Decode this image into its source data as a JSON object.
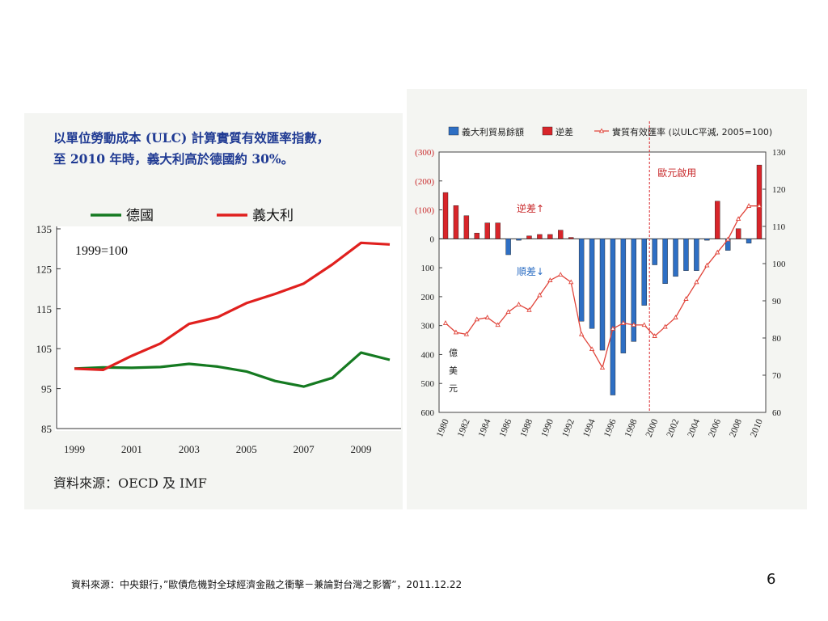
{
  "left_chart": {
    "title_line1": "以單位勞動成本 (ULC) 計算實質有效匯率指數，",
    "title_line2": "至 2010 年時，義大利高於德國約 30%。",
    "base_note": "1999=100",
    "source": "資料來源：OECD 及 IMF",
    "colors": {
      "germany": "#157a21",
      "italy": "#e0201e"
    },
    "chart_data": {
      "type": "line",
      "title": "以單位勞動成本 (ULC) 計算實質有效匯率指數",
      "x": [
        1999,
        2000,
        2001,
        2002,
        2003,
        2004,
        2005,
        2006,
        2007,
        2008,
        2009,
        2010
      ],
      "series": [
        {
          "name": "德國",
          "values": [
            100,
            100.3,
            100.2,
            100.4,
            101.2,
            100.5,
            99.3,
            96.9,
            95.5,
            97.7,
            104,
            102.2
          ]
        },
        {
          "name": "義大利",
          "values": [
            100,
            99.7,
            103.2,
            106.3,
            111.2,
            112.9,
            116.4,
            118.7,
            121.3,
            126.1,
            131.5,
            131.1
          ]
        }
      ],
      "ylim": [
        85,
        135
      ],
      "yticks": [
        85,
        95,
        105,
        115,
        125,
        135
      ],
      "xticks": [
        1999,
        2001,
        2003,
        2005,
        2007,
        2009
      ],
      "legend": "top"
    }
  },
  "right_chart": {
    "legend": {
      "trade": "義大利貿易餘額",
      "deficit": "逆差",
      "reer": "實質有效匯率 (以ULC平減, 2005=100)"
    },
    "annotations": {
      "euro": "歐元啟用",
      "deficit_up": "逆差↑",
      "surplus_down": "順差↓",
      "unit_chars": [
        "億",
        "美",
        "元"
      ]
    },
    "colors": {
      "surplus_bar": "#2e6fc4",
      "deficit_bar": "#d8252a",
      "reer_line": "#e0443a",
      "left_axis_neg": "#c8282a"
    },
    "chart_data": {
      "type": "bar",
      "x": [
        1980,
        1981,
        1982,
        1983,
        1984,
        1985,
        1986,
        1987,
        1988,
        1989,
        1990,
        1991,
        1992,
        1993,
        1994,
        1995,
        1996,
        1997,
        1998,
        1999,
        2000,
        2001,
        2002,
        2003,
        2004,
        2005,
        2006,
        2007,
        2008,
        2009,
        2010
      ],
      "series": [
        {
          "name": "義大利貿易餘額",
          "values": [
            -160,
            -115,
            -80,
            -20,
            -55,
            -55,
            55,
            5,
            -10,
            -15,
            -15,
            -30,
            -5,
            285,
            310,
            385,
            540,
            395,
            355,
            230,
            90,
            155,
            130,
            110,
            110,
            5,
            -130,
            40,
            -35,
            15,
            -255
          ]
        },
        {
          "name": "實質有效匯率 (以ULC平減, 2005=100)",
          "axis": "right",
          "values": [
            84,
            81.5,
            81,
            85,
            85.5,
            83.5,
            87,
            89,
            87.5,
            91.5,
            95.5,
            97,
            95,
            81,
            77,
            72,
            82.5,
            84,
            83.5,
            83.5,
            80.5,
            83,
            85.5,
            90.5,
            95,
            99.5,
            103,
            106.5,
            112,
            115.5,
            115.5
          ]
        }
      ],
      "left_axis": {
        "ticks": [
          600,
          500,
          400,
          300,
          200,
          100,
          0,
          -100,
          -200,
          -300
        ],
        "tick_labels": [
          "600",
          "500",
          "400",
          "300",
          "200",
          "100",
          "0",
          "(100)",
          "(200)",
          "(300)"
        ],
        "range": [
          -300,
          600
        ]
      },
      "right_axis": {
        "ticks": [
          60,
          70,
          80,
          90,
          100,
          110,
          120,
          130
        ],
        "range": [
          60,
          130
        ]
      },
      "xtick_labels": [
        "1980",
        "1982",
        "1984",
        "1986",
        "1988",
        "1990",
        "1992",
        "1994",
        "1996",
        "1998",
        "2000",
        "2002",
        "2004",
        "2006",
        "2008",
        "2010"
      ],
      "vline_year": 1999.5,
      "legend": "top"
    }
  },
  "footer": {
    "source": "資料來源：中央銀行，”歐債危機對全球經濟金融之衝擊－兼論對台灣之影響”，2011.12.22",
    "page": "6"
  }
}
